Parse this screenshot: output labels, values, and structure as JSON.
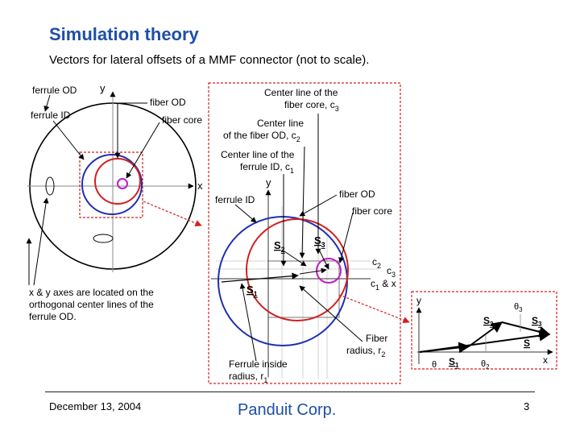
{
  "slide": {
    "title": "Simulation theory",
    "subtitle": "Vectors for lateral offsets of a MMF connector (not to scale)."
  },
  "left_diagram": {
    "labels": {
      "ferrule_od": "ferrule OD",
      "y_axis": "y",
      "fiber_od": "fiber OD",
      "ferrule_id": "ferrule ID",
      "fiber_core": "fiber core",
      "x_axis": "x",
      "axes_note_1": "x & y axes are located on the",
      "axes_note_2": "orthogonal center lines of the",
      "axes_note_3": "ferrule OD."
    }
  },
  "center_diagram": {
    "labels": {
      "c3_line1": "Center line of the",
      "c3_line2": "fiber core, c",
      "c3_sub": "3",
      "c2_line1": "Center line",
      "c2_line2": "of the fiber OD, c",
      "c2_sub": "2",
      "c1_line1": "Center line of the",
      "c1_line2": "ferrule ID, c",
      "c1_sub": "1",
      "y_axis": "y",
      "fiber_od": "fiber OD",
      "ferrule_id": "ferrule ID",
      "fiber_core": "fiber core",
      "s2": "S",
      "s2_sub": "2",
      "s3": "S",
      "s3_sub": "3",
      "s1": "S",
      "s1_sub": "1",
      "c2": "c",
      "c2_label_sub": "2",
      "c3": "c",
      "c3_label_sub": "3",
      "c1x": "c",
      "c1x_sub": "1",
      "c1x_tail": " & x",
      "fiber_radius_1": "Fiber",
      "fiber_radius_2": "radius, r",
      "fiber_radius_sub": "2",
      "ferrule_radius_1": "Ferrule inside",
      "ferrule_radius_2": "radius, r",
      "ferrule_radius_sub": "1"
    }
  },
  "vector_diagram": {
    "labels": {
      "y_axis": "y",
      "x_axis": "x",
      "theta3": "θ",
      "theta3_sub": "3",
      "s2": "S",
      "s2_sub": "2",
      "s3": "S",
      "s3_sub": "3",
      "s": "S",
      "theta": "θ",
      "s1": "S",
      "s1_sub": "1",
      "theta2": "θ",
      "theta2_sub": "2"
    }
  },
  "colors": {
    "title": "#1f4fa6",
    "ferrule_id_circle": "#1f2fb0",
    "fiber_od_circle": "#d21f1f",
    "fiber_core_circle": "#c01fbf",
    "zoom_box": "#d32020"
  },
  "footer": {
    "date": "December 13, 2004",
    "company": "Panduit Corp.",
    "page": "3"
  }
}
